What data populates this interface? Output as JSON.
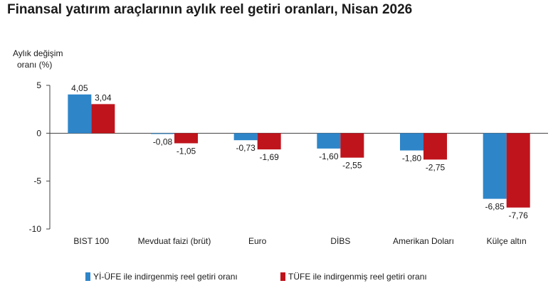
{
  "chart_data": {
    "type": "bar",
    "title": "Finansal yatırım araçlarının aylık reel getiri oranları, Nisan 2026",
    "ylabel_lines": [
      "Aylık değişim",
      "oranı (%)"
    ],
    "xlabel": "",
    "ylim": [
      -10,
      5
    ],
    "yticks": [
      5,
      0,
      -5,
      -10
    ],
    "grid": false,
    "legend_position": "bottom",
    "categories": [
      "BIST 100",
      "Mevduat faizi (brüt)",
      "Euro",
      "DİBS",
      "Amerikan Doları",
      "Külçe altın"
    ],
    "series": [
      {
        "name": "Yİ-ÜFE ile indirgenmiş reel getiri oranı",
        "color": "#2e86c9",
        "values": [
          4.05,
          -0.08,
          -0.73,
          -1.6,
          -1.8,
          -6.85
        ],
        "labels": [
          "4,05",
          "-0,08",
          "-0,73",
          "-1,60",
          "-1,80",
          "-6,85"
        ]
      },
      {
        "name": "TÜFE ile indirgenmiş reel getiri oranı",
        "color": "#c0141c",
        "values": [
          3.04,
          -1.05,
          -1.69,
          -2.55,
          -2.75,
          -7.76
        ],
        "labels": [
          "3,04",
          "-1,05",
          "-1,69",
          "-2,55",
          "-2,75",
          "-7,76"
        ]
      }
    ]
  }
}
